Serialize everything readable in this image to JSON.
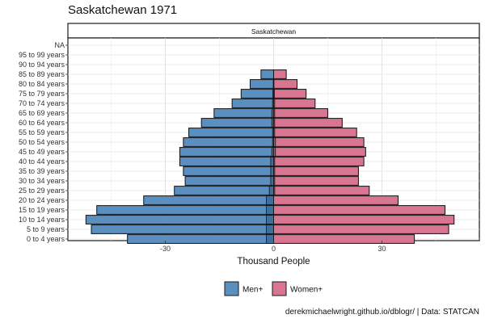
{
  "page": {
    "title": "Saskatchewan 1971",
    "caption": "derekmichaelwright.github.io/dblogr/ | Data: STATCAN"
  },
  "chart_data": {
    "type": "bar",
    "orientation": "horizontal",
    "title": "Saskatchewan 1971",
    "facet_label": "Saskatchewan",
    "xlabel": "Thousand People",
    "ylabel": "",
    "xlim": [
      -57,
      57
    ],
    "x_ticks": [
      -30,
      0,
      30
    ],
    "x_tick_labels": [
      "-30",
      "0",
      "30"
    ],
    "grid": true,
    "legend_position": "bottom",
    "categories": [
      "0 to 4 years",
      "5 to 9 years",
      "10 to 14 years",
      "15 to 19 years",
      "20 to 24 years",
      "25 to 29 years",
      "30 to 34 years",
      "35 to 39 years",
      "40 to 44 years",
      "45 to 49 years",
      "50 to 54 years",
      "55 to 59 years",
      "60 to 64 years",
      "65 to 69 years",
      "70 to 74 years",
      "75 to 79 years",
      "80 to 84 years",
      "85 to 89 years",
      "90 to 94 years",
      "95 to 99 years",
      "NA"
    ],
    "series": [
      {
        "name": "Men+",
        "color": "#5b8fc0",
        "values": [
          -40.5,
          -50.5,
          -52,
          -49,
          -36,
          -27.5,
          -24.5,
          -25,
          -26,
          -26,
          -25,
          -23.5,
          -20,
          -16.5,
          -11.5,
          -9,
          -6.5,
          -3.5,
          0,
          0,
          0
        ],
        "inner_values": [
          -2,
          -2,
          -2,
          -2,
          -2,
          -1.2,
          -0.8,
          -0.8,
          -0.8,
          -0.5,
          -0.3,
          -0.3,
          -0.5,
          -0.5,
          -0.3,
          -0.2,
          -0.1,
          0,
          0,
          0,
          0
        ]
      },
      {
        "name": "Women+",
        "color": "#d87590",
        "values": [
          39,
          48.5,
          50,
          47.5,
          34.5,
          26.5,
          23.5,
          23.5,
          25,
          25.5,
          25,
          23,
          19,
          15,
          11.5,
          9,
          6.5,
          3.5,
          0,
          0,
          0
        ],
        "inner_values": [
          0,
          0,
          0,
          0,
          0,
          0.3,
          0.3,
          0.3,
          0.3,
          0.5,
          0.5,
          0.3,
          0.3,
          0.3,
          0.3,
          0.2,
          0.1,
          0,
          0,
          0,
          0
        ]
      }
    ]
  }
}
